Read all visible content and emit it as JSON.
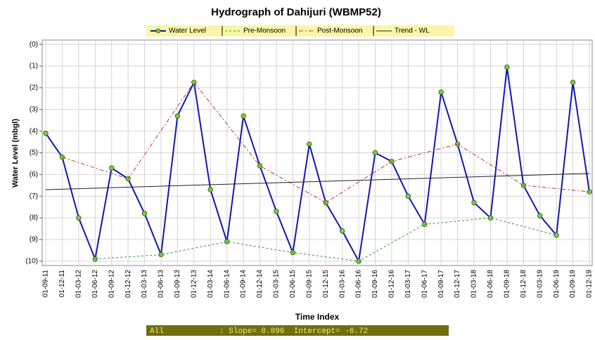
{
  "chart_data": {
    "type": "line",
    "title": "Hydrograph of Dahijuri (WBMP52)",
    "x_label": "Time Index",
    "y_label": "Water Level (mbgl)",
    "footer": "All            : Slope= 0.096  Intercept= -6.72",
    "categories": [
      "01-09-11",
      "01-12-11",
      "01-03-12",
      "01-06-12",
      "01-09-12",
      "01-12-12",
      "01-03-13",
      "01-06-13",
      "01-09-13",
      "01-12-13",
      "01-03-14",
      "01-06-14",
      "01-09-14",
      "01-12-14",
      "01-03-15",
      "01-06-15",
      "01-09-15",
      "01-12-15",
      "01-03-16",
      "01-06-16",
      "01-09-16",
      "01-12-16",
      "01-03-17",
      "01-06-17",
      "01-09-17",
      "01-12-17",
      "01-03-18",
      "01-06-18",
      "01-09-18",
      "01-12-18",
      "01-03-19",
      "01-06-19",
      "01-09-19",
      "01-12-19"
    ],
    "y_inverted": true,
    "ylim": [
      -0.2,
      10.2
    ],
    "yticks": [
      {
        "value": 0,
        "label": "(0)"
      },
      {
        "value": 1,
        "label": "(1)"
      },
      {
        "value": 2,
        "label": "(2)"
      },
      {
        "value": 3,
        "label": "(3)"
      },
      {
        "value": 4,
        "label": "(4)"
      },
      {
        "value": 5,
        "label": "(5)"
      },
      {
        "value": 6,
        "label": "(6)"
      },
      {
        "value": 7,
        "label": "(7)"
      },
      {
        "value": 8,
        "label": "(8)"
      },
      {
        "value": 9,
        "label": "(9)"
      },
      {
        "value": 10,
        "label": "(10)"
      }
    ],
    "grid": true,
    "series": [
      {
        "name": "Water Level",
        "color": "#1414b4",
        "marker_color": "#7ccd3c",
        "values": [
          4.1,
          5.2,
          8.0,
          9.9,
          5.7,
          6.2,
          7.8,
          9.7,
          3.3,
          1.75,
          6.7,
          9.1,
          3.3,
          5.6,
          7.7,
          9.6,
          4.6,
          7.3,
          8.6,
          10.0,
          5.0,
          5.4,
          7.0,
          8.3,
          2.2,
          4.6,
          7.3,
          8.0,
          1.05,
          6.5,
          7.9,
          8.8,
          1.75,
          6.8
        ]
      },
      {
        "name": "Pre-Monsoon",
        "color": "#2a9a2a",
        "dash": "3,3",
        "x": [
          "01-06-12",
          "01-06-13",
          "01-06-14",
          "01-06-15",
          "01-06-16",
          "01-06-17",
          "01-06-18",
          "01-06-19"
        ],
        "values": [
          9.9,
          9.7,
          9.1,
          9.6,
          10.0,
          8.3,
          8.0,
          8.8
        ]
      },
      {
        "name": "Post-Monsoon",
        "color": "#c83232",
        "dash": "6,3,2,3",
        "x": [
          "01-12-11",
          "01-12-12",
          "01-12-13",
          "01-12-14",
          "01-12-15",
          "01-12-16",
          "01-12-17",
          "01-12-18",
          "01-12-19"
        ],
        "values": [
          5.2,
          6.2,
          1.75,
          5.6,
          7.3,
          5.4,
          4.6,
          6.5,
          6.8
        ]
      },
      {
        "name": "Trend - WL",
        "color": "#222222",
        "x": [
          "01-09-11",
          "01-12-19"
        ],
        "values": [
          6.7,
          5.95
        ]
      }
    ]
  }
}
